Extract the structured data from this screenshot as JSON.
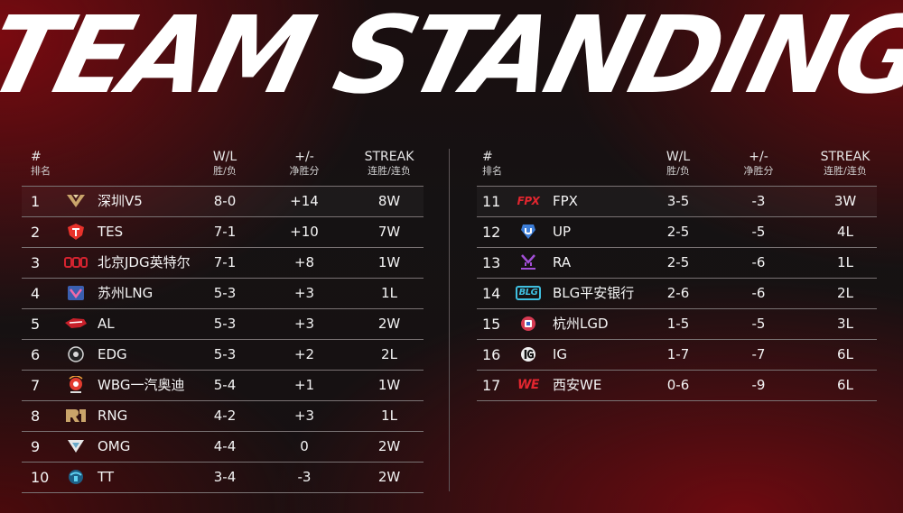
{
  "title": "TEAM STANDINGS",
  "headers": {
    "rank_en": "#",
    "rank_cn": "排名",
    "wl_en": "W/L",
    "wl_cn": "胜/负",
    "pm_en": "+/-",
    "pm_cn": "净胜分",
    "streak_en": "STREAK",
    "streak_cn": "连胜/连负"
  },
  "colors": {
    "accent": "#c8102e",
    "divider": "#7a7374",
    "text": "#f2f2f2"
  },
  "left_rows": [
    {
      "rank": "1",
      "name": "深圳V5",
      "wl": "8-0",
      "pm": "+14",
      "streak": "8W",
      "logo": "v5-logo-icon"
    },
    {
      "rank": "2",
      "name": "TES",
      "wl": "7-1",
      "pm": "+10",
      "streak": "7W",
      "logo": "tes-logo-icon"
    },
    {
      "rank": "3",
      "name": "北京JDG英特尔",
      "wl": "7-1",
      "pm": "+8",
      "streak": "1W",
      "logo": "jdg-logo-icon"
    },
    {
      "rank": "4",
      "name": "苏州LNG",
      "wl": "5-3",
      "pm": "+3",
      "streak": "1L",
      "logo": "lng-logo-icon"
    },
    {
      "rank": "5",
      "name": "AL",
      "wl": "5-3",
      "pm": "+3",
      "streak": "2W",
      "logo": "al-logo-icon"
    },
    {
      "rank": "6",
      "name": "EDG",
      "wl": "5-3",
      "pm": "+2",
      "streak": "2L",
      "logo": "edg-logo-icon"
    },
    {
      "rank": "7",
      "name": "WBG一汽奥迪",
      "wl": "5-4",
      "pm": "+1",
      "streak": "1W",
      "logo": "wbg-logo-icon"
    },
    {
      "rank": "8",
      "name": "RNG",
      "wl": "4-2",
      "pm": "+3",
      "streak": "1L",
      "logo": "rng-logo-icon"
    },
    {
      "rank": "9",
      "name": "OMG",
      "wl": "4-4",
      "pm": "0",
      "streak": "2W",
      "logo": "omg-logo-icon"
    },
    {
      "rank": "10",
      "name": "TT",
      "wl": "3-4",
      "pm": "-3",
      "streak": "2W",
      "logo": "tt-logo-icon"
    }
  ],
  "right_rows": [
    {
      "rank": "11",
      "name": "FPX",
      "wl": "3-5",
      "pm": "-3",
      "streak": "3W",
      "logo": "fpx-logo-icon",
      "logo_text": "FPX"
    },
    {
      "rank": "12",
      "name": "UP",
      "wl": "2-5",
      "pm": "-5",
      "streak": "4L",
      "logo": "up-logo-icon"
    },
    {
      "rank": "13",
      "name": "RA",
      "wl": "2-5",
      "pm": "-6",
      "streak": "1L",
      "logo": "ra-logo-icon"
    },
    {
      "rank": "14",
      "name": "BLG平安银行",
      "wl": "2-6",
      "pm": "-6",
      "streak": "2L",
      "logo": "blg-logo-icon",
      "logo_text": "BLG"
    },
    {
      "rank": "15",
      "name": "杭州LGD",
      "wl": "1-5",
      "pm": "-5",
      "streak": "3L",
      "logo": "lgd-logo-icon"
    },
    {
      "rank": "16",
      "name": "IG",
      "wl": "1-7",
      "pm": "-7",
      "streak": "6L",
      "logo": "ig-logo-icon"
    },
    {
      "rank": "17",
      "name": "西安WE",
      "wl": "0-6",
      "pm": "-9",
      "streak": "6L",
      "logo": "we-logo-icon",
      "logo_text": "WE"
    }
  ]
}
